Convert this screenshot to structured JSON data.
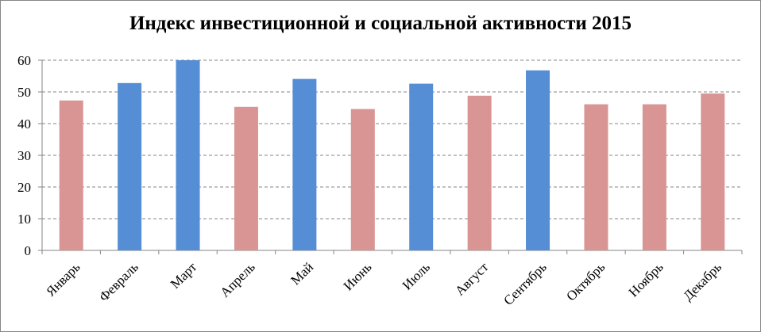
{
  "chart_data": {
    "type": "bar",
    "title": "Индекс инвестиционной и социальной активности 2015",
    "xlabel": "",
    "ylabel": "",
    "ylim": [
      0,
      60
    ],
    "yticks": [
      0,
      10,
      20,
      30,
      40,
      50,
      60
    ],
    "grid": true,
    "legend": "none",
    "categories": [
      "Январь",
      "Февраль",
      "Март",
      "Апрель",
      "Май",
      "Июнь",
      "Июль",
      "Август",
      "Сентябрь",
      "Октябрь",
      "Ноябрь",
      "Декабрь"
    ],
    "values": [
      47.3,
      52.8,
      60,
      45.3,
      54.1,
      44.6,
      52.6,
      48.8,
      56.8,
      46.1,
      46.1,
      49.5
    ],
    "bar_colors": [
      "#d99594",
      "#558ed5",
      "#558ed5",
      "#d99594",
      "#558ed5",
      "#d99594",
      "#558ed5",
      "#d99594",
      "#558ed5",
      "#d99594",
      "#d99594",
      "#d99594"
    ]
  }
}
